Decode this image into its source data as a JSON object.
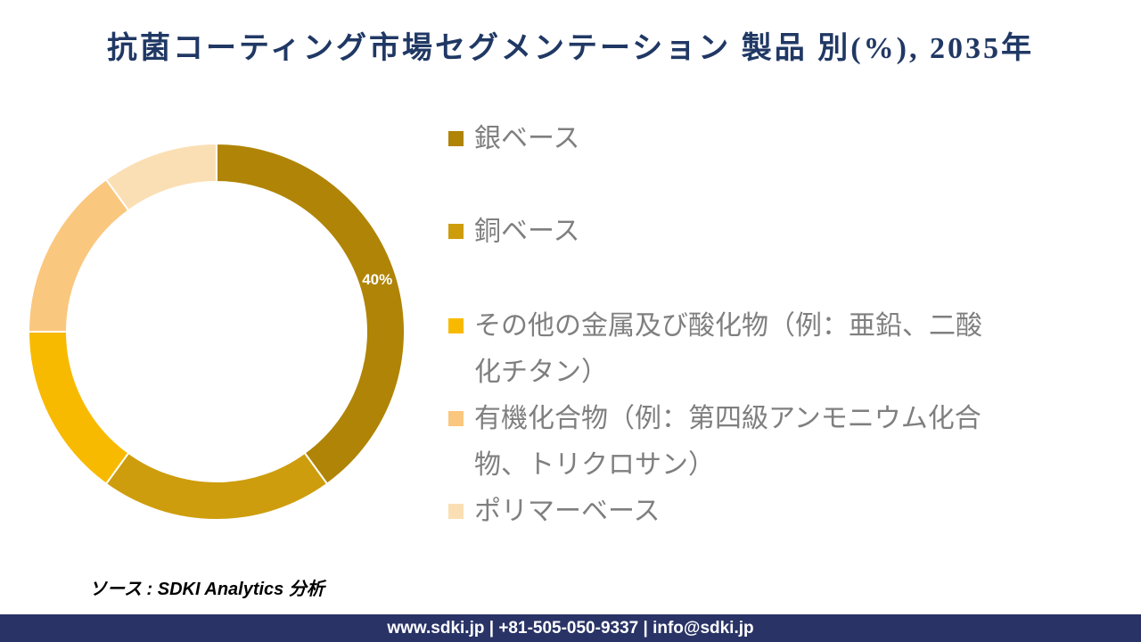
{
  "title": "抗菌コーティング市場セグメンテーション 製品 別(%), 2035年",
  "source_note": "ソース : SDKI Analytics 分析",
  "footer": {
    "text": "www.sdki.jp | +81-505-050-9337 | info@sdki.jp",
    "background_color": "#293366"
  },
  "title_color": "#203864",
  "legend_text_color": "#7f7f7f",
  "chart_data": {
    "type": "pie",
    "subtype": "donut",
    "title": "抗菌コーティング市場セグメンテーション 製品 別(%), 2035年",
    "unit": "%",
    "start_angle_deg": 0,
    "direction": "clockwise",
    "inner_radius_ratio": 0.8,
    "legend_position": "right",
    "categories": [
      "銀ベース",
      "銅ベース",
      "その他の金属及び酸化物（例：亜鉛、二酸化チタン）",
      "有機化合物（例：第四級アンモニウム化合物、トリクロサン）",
      "ポリマーベース"
    ],
    "values": [
      40,
      20,
      15,
      15,
      10
    ],
    "colors": [
      "#B08406",
      "#CE9D0D",
      "#F8BA00",
      "#FAC77E",
      "#FBDFB4"
    ],
    "labels": [
      "40%",
      "",
      "",
      "",
      ""
    ]
  }
}
